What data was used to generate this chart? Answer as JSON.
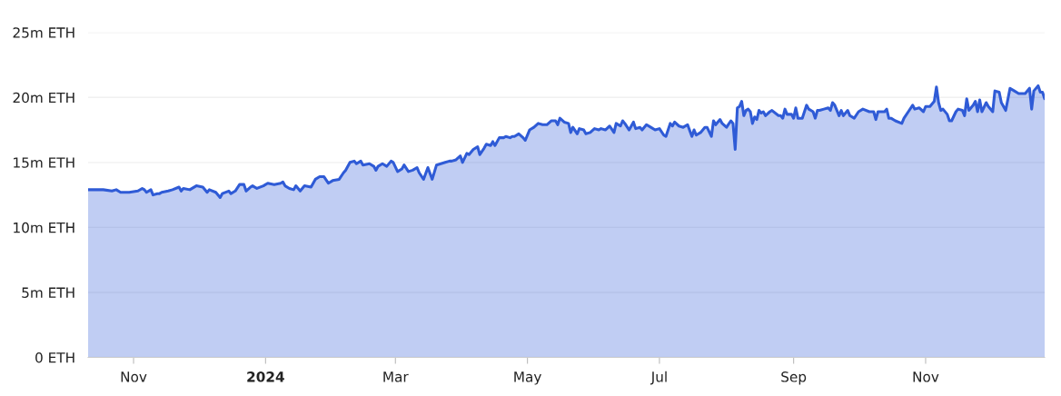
{
  "chart_data": {
    "type": "area",
    "x": [
      "2023-10-11",
      "2023-10-15",
      "2023-10-18",
      "2023-10-22",
      "2023-10-24",
      "2023-10-26",
      "2023-10-30",
      "2023-11-03",
      "2023-11-05",
      "2023-11-06",
      "2023-11-07",
      "2023-11-09",
      "2023-11-10",
      "2023-11-12",
      "2023-11-13",
      "2023-11-14",
      "2023-11-17",
      "2023-11-19",
      "2023-11-22",
      "2023-11-23",
      "2023-11-24",
      "2023-11-27",
      "2023-11-30",
      "2023-12-03",
      "2023-12-05",
      "2023-12-06",
      "2023-12-09",
      "2023-12-11",
      "2023-12-12",
      "2023-12-15",
      "2023-12-16",
      "2023-12-18",
      "2023-12-20",
      "2023-12-22",
      "2023-12-23",
      "2023-12-25",
      "2023-12-26",
      "2023-12-28",
      "2023-12-31",
      "2024-01-02",
      "2024-01-05",
      "2024-01-08",
      "2024-01-09",
      "2024-01-10",
      "2024-01-12",
      "2024-01-14",
      "2024-01-15",
      "2024-01-17",
      "2024-01-19",
      "2024-01-22",
      "2024-01-24",
      "2024-01-26",
      "2024-01-28",
      "2024-01-30",
      "2024-02-01",
      "2024-02-04",
      "2024-02-06",
      "2024-02-07",
      "2024-02-09",
      "2024-02-11",
      "2024-02-12",
      "2024-02-14",
      "2024-02-15",
      "2024-02-18",
      "2024-02-20",
      "2024-02-21",
      "2024-02-22",
      "2024-02-24",
      "2024-02-26",
      "2024-02-28",
      "2024-02-29",
      "2024-03-02",
      "2024-03-04",
      "2024-03-05",
      "2024-03-07",
      "2024-03-09",
      "2024-03-11",
      "2024-03-12",
      "2024-03-14",
      "2024-03-16",
      "2024-03-18",
      "2024-03-20",
      "2024-03-22",
      "2024-03-24",
      "2024-03-26",
      "2024-03-27",
      "2024-03-29",
      "2024-03-31",
      "2024-04-01",
      "2024-04-03",
      "2024-04-04",
      "2024-04-06",
      "2024-04-08",
      "2024-04-09",
      "2024-04-11",
      "2024-04-12",
      "2024-04-14",
      "2024-04-15",
      "2024-04-16",
      "2024-04-18",
      "2024-04-20",
      "2024-04-21",
      "2024-04-23",
      "2024-04-24",
      "2024-04-25",
      "2024-04-27",
      "2024-04-29",
      "2024-04-30",
      "2024-05-02",
      "2024-05-04",
      "2024-05-06",
      "2024-05-08",
      "2024-05-10",
      "2024-05-12",
      "2024-05-14",
      "2024-05-15",
      "2024-05-16",
      "2024-05-18",
      "2024-05-20",
      "2024-05-21",
      "2024-05-22",
      "2024-05-24",
      "2024-05-25",
      "2024-05-27",
      "2024-05-28",
      "2024-05-30",
      "2024-06-01",
      "2024-06-03",
      "2024-06-04",
      "2024-06-06",
      "2024-06-08",
      "2024-06-10",
      "2024-06-11",
      "2024-06-13",
      "2024-06-14",
      "2024-06-15",
      "2024-06-17",
      "2024-06-19",
      "2024-06-20",
      "2024-06-22",
      "2024-06-23",
      "2024-06-25",
      "2024-06-27",
      "2024-06-29",
      "2024-07-01",
      "2024-07-03",
      "2024-07-04",
      "2024-07-06",
      "2024-07-07",
      "2024-07-08",
      "2024-07-10",
      "2024-07-12",
      "2024-07-14",
      "2024-07-16",
      "2024-07-17",
      "2024-07-18",
      "2024-07-20",
      "2024-07-22",
      "2024-07-23",
      "2024-07-25",
      "2024-07-26",
      "2024-07-27",
      "2024-07-29",
      "2024-07-30",
      "2024-08-01",
      "2024-08-03",
      "2024-08-04",
      "2024-08-05",
      "2024-08-06",
      "2024-08-07",
      "2024-08-08",
      "2024-08-09",
      "2024-08-10",
      "2024-08-11",
      "2024-08-12",
      "2024-08-13",
      "2024-08-14",
      "2024-08-15",
      "2024-08-16",
      "2024-08-17",
      "2024-08-18",
      "2024-08-19",
      "2024-08-21",
      "2024-08-22",
      "2024-08-25",
      "2024-08-26",
      "2024-08-27",
      "2024-08-28",
      "2024-08-29",
      "2024-08-31",
      "2024-09-01",
      "2024-09-02",
      "2024-09-03",
      "2024-09-05",
      "2024-09-07",
      "2024-09-08",
      "2024-09-10",
      "2024-09-11",
      "2024-09-12",
      "2024-09-13",
      "2024-09-15",
      "2024-09-17",
      "2024-09-18",
      "2024-09-19",
      "2024-09-20",
      "2024-09-22",
      "2024-09-23",
      "2024-09-24",
      "2024-09-26",
      "2024-09-27",
      "2024-09-29",
      "2024-10-01",
      "2024-10-03",
      "2024-10-06",
      "2024-10-08",
      "2024-10-09",
      "2024-10-10",
      "2024-10-13",
      "2024-10-14",
      "2024-10-15",
      "2024-10-16",
      "2024-10-18",
      "2024-10-21",
      "2024-10-22",
      "2024-10-24",
      "2024-10-26",
      "2024-10-27",
      "2024-10-29",
      "2024-10-31",
      "2024-11-01",
      "2024-11-03",
      "2024-11-05",
      "2024-11-06",
      "2024-11-07",
      "2024-11-08",
      "2024-11-09",
      "2024-11-11",
      "2024-11-12",
      "2024-11-13",
      "2024-11-15",
      "2024-11-16",
      "2024-11-18",
      "2024-11-19",
      "2024-11-20",
      "2024-11-21",
      "2024-11-23",
      "2024-11-24",
      "2024-11-25",
      "2024-11-26",
      "2024-11-27",
      "2024-11-29",
      "2024-11-30",
      "2024-12-02",
      "2024-12-03",
      "2024-12-05",
      "2024-12-06",
      "2024-12-08",
      "2024-12-10",
      "2024-12-12",
      "2024-12-14",
      "2024-12-16",
      "2024-12-17",
      "2024-12-19",
      "2024-12-20",
      "2024-12-21",
      "2024-12-23",
      "2024-12-24",
      "2024-12-25",
      "2024-12-26"
    ],
    "series": [
      {
        "color": "#2f5bd6",
        "values": [
          12.9,
          12.9,
          12.9,
          12.8,
          12.9,
          12.7,
          12.7,
          12.8,
          13.0,
          12.9,
          12.7,
          12.9,
          12.5,
          12.6,
          12.6,
          12.7,
          12.8,
          12.9,
          13.1,
          12.8,
          13.0,
          12.9,
          13.2,
          13.1,
          12.7,
          12.9,
          12.7,
          12.3,
          12.6,
          12.8,
          12.6,
          12.8,
          13.3,
          13.3,
          12.8,
          13.1,
          13.2,
          13.0,
          13.2,
          13.4,
          13.3,
          13.4,
          13.5,
          13.2,
          13.0,
          12.9,
          13.2,
          12.8,
          13.2,
          13.1,
          13.7,
          13.9,
          13.9,
          13.4,
          13.6,
          13.7,
          14.2,
          14.4,
          15.0,
          15.1,
          14.9,
          15.1,
          14.8,
          14.9,
          14.7,
          14.4,
          14.7,
          14.9,
          14.7,
          15.1,
          15.0,
          14.3,
          14.5,
          14.8,
          14.3,
          14.4,
          14.6,
          14.2,
          13.7,
          14.6,
          13.7,
          14.8,
          14.9,
          15.0,
          15.1,
          15.1,
          15.2,
          15.5,
          15.0,
          15.7,
          15.6,
          16.0,
          16.2,
          15.6,
          16.1,
          16.4,
          16.3,
          16.6,
          16.3,
          16.9,
          16.9,
          17.0,
          16.9,
          17.0,
          17.0,
          17.2,
          16.9,
          16.7,
          17.5,
          17.7,
          18.0,
          17.9,
          17.9,
          18.2,
          18.2,
          17.9,
          18.4,
          18.1,
          18.0,
          17.3,
          17.7,
          17.2,
          17.6,
          17.5,
          17.2,
          17.3,
          17.6,
          17.5,
          17.6,
          17.5,
          17.8,
          17.3,
          18.0,
          17.8,
          18.2,
          18.0,
          17.5,
          18.1,
          17.6,
          17.7,
          17.5,
          17.9,
          17.7,
          17.5,
          17.6,
          17.1,
          17.0,
          18.0,
          17.8,
          18.1,
          17.8,
          17.7,
          17.9,
          17.0,
          17.5,
          17.1,
          17.3,
          17.7,
          17.7,
          17.0,
          18.2,
          17.9,
          18.3,
          18.0,
          17.7,
          18.2,
          18.0,
          16.0,
          19.2,
          19.3,
          19.7,
          18.6,
          19.0,
          19.1,
          18.9,
          18.0,
          18.5,
          18.3,
          19.0,
          18.8,
          18.9,
          18.6,
          18.9,
          19.0,
          18.6,
          18.6,
          18.4,
          19.1,
          18.7,
          18.7,
          18.4,
          19.2,
          18.4,
          18.4,
          19.4,
          19.1,
          18.9,
          18.4,
          19.0,
          19.0,
          19.1,
          19.2,
          19.0,
          19.6,
          19.4,
          18.6,
          19.0,
          18.6,
          19.0,
          18.6,
          18.4,
          18.9,
          19.1,
          18.9,
          18.9,
          18.3,
          18.9,
          18.9,
          19.1,
          18.4,
          18.4,
          18.2,
          18.0,
          18.4,
          18.9,
          19.4,
          19.1,
          19.2,
          18.9,
          19.3,
          19.3,
          19.7,
          20.8,
          19.6,
          19.0,
          19.1,
          18.7,
          18.2,
          18.2,
          18.9,
          19.1,
          19.0,
          18.6,
          19.9,
          19.0,
          19.4,
          19.7,
          18.9,
          19.8,
          18.9,
          19.6,
          19.3,
          18.9,
          20.5,
          20.4,
          19.6,
          19.0,
          20.7,
          20.5,
          20.3,
          20.3,
          20.3,
          20.7,
          19.1,
          20.5,
          20.9,
          20.4,
          20.4,
          19.9
        ]
      }
    ],
    "xlim": [
      "2023-10-11",
      "2024-12-26"
    ],
    "xticks": [
      {
        "value": "2023-11-01",
        "label": "Nov"
      },
      {
        "value": "2024-01-01",
        "label": "2024"
      },
      {
        "value": "2024-03-01",
        "label": "Mar"
      },
      {
        "value": "2024-05-01",
        "label": "May"
      },
      {
        "value": "2024-07-01",
        "label": "Jul"
      },
      {
        "value": "2024-09-01",
        "label": "Sep"
      },
      {
        "value": "2024-11-01",
        "label": "Nov"
      }
    ],
    "ylim": [
      0,
      25
    ],
    "yticks": [
      {
        "value": 0,
        "label": "0 ETH"
      },
      {
        "value": 5,
        "label": "5m ETH"
      },
      {
        "value": 10,
        "label": "10m ETH"
      },
      {
        "value": 15,
        "label": "15m ETH"
      },
      {
        "value": 20,
        "label": "20m ETH"
      },
      {
        "value": 25,
        "label": "25m ETH"
      }
    ],
    "grid": "y"
  }
}
